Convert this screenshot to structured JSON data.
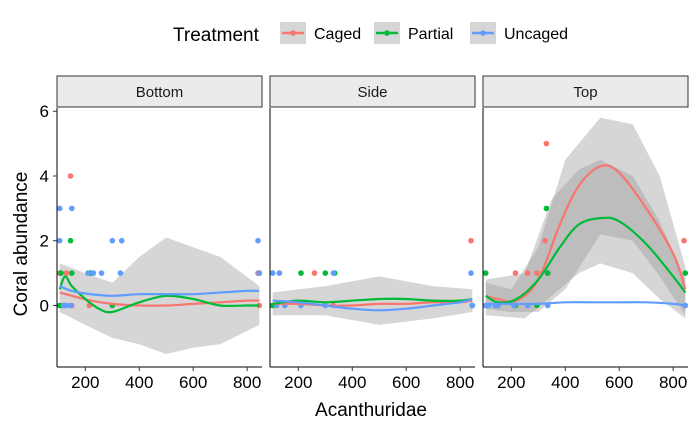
{
  "chart_data": {
    "type": "scatter",
    "facets": [
      "Bottom",
      "Side",
      "Top"
    ],
    "xlabel": "Acanthuridae",
    "ylabel": "Coral abundance",
    "xlim": [
      95,
      855
    ],
    "ylim": [
      -1.9,
      6.1
    ],
    "x_ticks": [
      200,
      400,
      600,
      800
    ],
    "y_ticks": [
      0,
      2,
      4,
      6
    ],
    "legend": {
      "title": "Treatment",
      "position": "top"
    },
    "smoother": "loess",
    "series": [
      {
        "name": "Caged",
        "color": "#F8766D",
        "points": {
          "Bottom": [
            [
              105,
              1
            ],
            [
              115,
              0
            ],
            [
              125,
              0
            ],
            [
              130,
              1
            ],
            [
              145,
              4
            ],
            [
              150,
              0
            ],
            [
              215,
              0
            ],
            [
              840,
              1
            ],
            [
              845,
              0
            ]
          ],
          "Side": [
            [
              105,
              0
            ],
            [
              130,
              1
            ],
            [
              150,
              0
            ],
            [
              260,
              1
            ],
            [
              330,
              0
            ],
            [
              840,
              2
            ],
            [
              845,
              0
            ]
          ],
          "Top": [
            [
              105,
              0
            ],
            [
              150,
              0
            ],
            [
              215,
              1
            ],
            [
              260,
              1
            ],
            [
              295,
              1
            ],
            [
              325,
              2
            ],
            [
              330,
              5
            ],
            [
              335,
              1
            ],
            [
              840,
              2
            ],
            [
              845,
              0
            ]
          ]
        },
        "fit": {
          "Bottom": [
            [
              105,
              0.4
            ],
            [
              150,
              0.3
            ],
            [
              220,
              0.15
            ],
            [
              300,
              0.05
            ],
            [
              400,
              0.0
            ],
            [
              500,
              0.0
            ],
            [
              600,
              0.05
            ],
            [
              700,
              0.1
            ],
            [
              800,
              0.15
            ],
            [
              845,
              0.15
            ]
          ],
          "Side": [
            [
              105,
              0.05
            ],
            [
              200,
              0.05
            ],
            [
              300,
              0.0
            ],
            [
              400,
              0.0
            ],
            [
              500,
              0.05
            ],
            [
              600,
              0.05
            ],
            [
              700,
              0.1
            ],
            [
              800,
              0.1
            ],
            [
              845,
              0.15
            ]
          ],
          "Top": [
            [
              105,
              0.3
            ],
            [
              150,
              0.2
            ],
            [
              220,
              0.15
            ],
            [
              300,
              0.8
            ],
            [
              380,
              2.5
            ],
            [
              450,
              3.7
            ],
            [
              530,
              4.3
            ],
            [
              600,
              4.1
            ],
            [
              700,
              3.0
            ],
            [
              800,
              1.6
            ],
            [
              845,
              0.5
            ]
          ]
        },
        "band": {
          "Top": [
            [
              105,
              -0.1,
              0.7
            ],
            [
              200,
              -0.2,
              0.5
            ],
            [
              300,
              -0.2,
              1.8
            ],
            [
              400,
              0.5,
              4.5
            ],
            [
              530,
              2.2,
              5.8
            ],
            [
              650,
              2.0,
              5.6
            ],
            [
              750,
              0.9,
              4.0
            ],
            [
              845,
              -0.3,
              1.2
            ]
          ]
        }
      },
      {
        "name": "Partial",
        "color": "#00BA38",
        "points": {
          "Bottom": [
            [
              105,
              0
            ],
            [
              110,
              1
            ],
            [
              145,
              2
            ],
            [
              150,
              1
            ],
            [
              220,
              1
            ],
            [
              300,
              0
            ],
            [
              845,
              1
            ]
          ],
          "Side": [
            [
              105,
              0
            ],
            [
              210,
              1
            ],
            [
              300,
              1
            ],
            [
              335,
              1
            ],
            [
              845,
              0
            ]
          ],
          "Top": [
            [
              105,
              1
            ],
            [
              150,
              0
            ],
            [
              215,
              0
            ],
            [
              295,
              0
            ],
            [
              330,
              3
            ],
            [
              335,
              1
            ],
            [
              845,
              1
            ]
          ]
        },
        "fit": {
          "Bottom": [
            [
              105,
              0.5
            ],
            [
              125,
              0.9
            ],
            [
              150,
              0.6
            ],
            [
              200,
              0.2
            ],
            [
              250,
              -0.1
            ],
            [
              300,
              -0.2
            ],
            [
              400,
              0.1
            ],
            [
              500,
              0.3
            ],
            [
              600,
              0.2
            ],
            [
              700,
              0.0
            ],
            [
              800,
              0.0
            ],
            [
              845,
              0.0
            ]
          ],
          "Side": [
            [
              105,
              0.05
            ],
            [
              200,
              0.15
            ],
            [
              300,
              0.1
            ],
            [
              400,
              0.15
            ],
            [
              500,
              0.2
            ],
            [
              600,
              0.2
            ],
            [
              700,
              0.15
            ],
            [
              800,
              0.15
            ],
            [
              845,
              0.2
            ]
          ],
          "Top": [
            [
              105,
              0.3
            ],
            [
              150,
              0.1
            ],
            [
              220,
              0.2
            ],
            [
              300,
              0.8
            ],
            [
              380,
              1.8
            ],
            [
              450,
              2.5
            ],
            [
              530,
              2.7
            ],
            [
              600,
              2.6
            ],
            [
              700,
              1.9
            ],
            [
              800,
              0.9
            ],
            [
              845,
              0.4
            ]
          ]
        },
        "band": {
          "Bottom": [
            [
              105,
              -0.2,
              1.3
            ],
            [
              200,
              -0.6,
              1.0
            ],
            [
              300,
              -1.0,
              0.7
            ],
            [
              400,
              -1.2,
              1.5
            ],
            [
              500,
              -1.5,
              2.1
            ],
            [
              600,
              -1.3,
              1.8
            ],
            [
              700,
              -1.2,
              1.5
            ],
            [
              845,
              -0.6,
              0.6
            ]
          ],
          "Side": [
            [
              105,
              -0.3,
              0.4
            ],
            [
              300,
              -0.3,
              0.6
            ],
            [
              500,
              -0.6,
              0.9
            ],
            [
              700,
              -0.4,
              0.6
            ],
            [
              845,
              -0.2,
              0.5
            ]
          ],
          "Top": [
            [
              105,
              -0.3,
              0.8
            ],
            [
              250,
              -0.4,
              1.0
            ],
            [
              350,
              0.3,
              3.3
            ],
            [
              450,
              1.0,
              4.2
            ],
            [
              530,
              1.3,
              4.5
            ],
            [
              650,
              1.0,
              4.0
            ],
            [
              750,
              0.2,
              2.6
            ],
            [
              845,
              -0.4,
              0.8
            ]
          ]
        }
      },
      {
        "name": "Uncaged",
        "color": "#619CFF",
        "points": {
          "Bottom": [
            [
              105,
              3
            ],
            [
              105,
              2
            ],
            [
              120,
              0
            ],
            [
              130,
              0
            ],
            [
              145,
              0
            ],
            [
              150,
              3
            ],
            [
              210,
              1
            ],
            [
              230,
              1
            ],
            [
              260,
              1
            ],
            [
              300,
              2
            ],
            [
              330,
              1
            ],
            [
              335,
              2
            ],
            [
              840,
              2
            ],
            [
              845,
              1
            ]
          ],
          "Side": [
            [
              105,
              1
            ],
            [
              120,
              0
            ],
            [
              130,
              1
            ],
            [
              150,
              0
            ],
            [
              210,
              0
            ],
            [
              300,
              0
            ],
            [
              330,
              1
            ],
            [
              840,
              1
            ],
            [
              845,
              0
            ]
          ],
          "Top": [
            [
              105,
              0
            ],
            [
              115,
              0
            ],
            [
              140,
              0
            ],
            [
              150,
              0
            ],
            [
              210,
              0
            ],
            [
              260,
              0
            ],
            [
              335,
              0
            ],
            [
              845,
              0
            ]
          ]
        },
        "fit": {
          "Bottom": [
            [
              105,
              0.6
            ],
            [
              150,
              0.45
            ],
            [
              220,
              0.35
            ],
            [
              300,
              0.3
            ],
            [
              400,
              0.35
            ],
            [
              500,
              0.35
            ],
            [
              600,
              0.35
            ],
            [
              700,
              0.4
            ],
            [
              800,
              0.45
            ],
            [
              845,
              0.45
            ]
          ],
          "Side": [
            [
              105,
              0.15
            ],
            [
              200,
              0.1
            ],
            [
              300,
              0.0
            ],
            [
              400,
              -0.1
            ],
            [
              500,
              -0.15
            ],
            [
              600,
              -0.1
            ],
            [
              700,
              0.0
            ],
            [
              800,
              0.1
            ],
            [
              845,
              0.2
            ]
          ],
          "Top": [
            [
              105,
              0.05
            ],
            [
              200,
              0.05
            ],
            [
              300,
              0.05
            ],
            [
              400,
              0.1
            ],
            [
              500,
              0.1
            ],
            [
              600,
              0.1
            ],
            [
              700,
              0.1
            ],
            [
              800,
              0.05
            ],
            [
              845,
              0.0
            ]
          ]
        }
      }
    ]
  }
}
